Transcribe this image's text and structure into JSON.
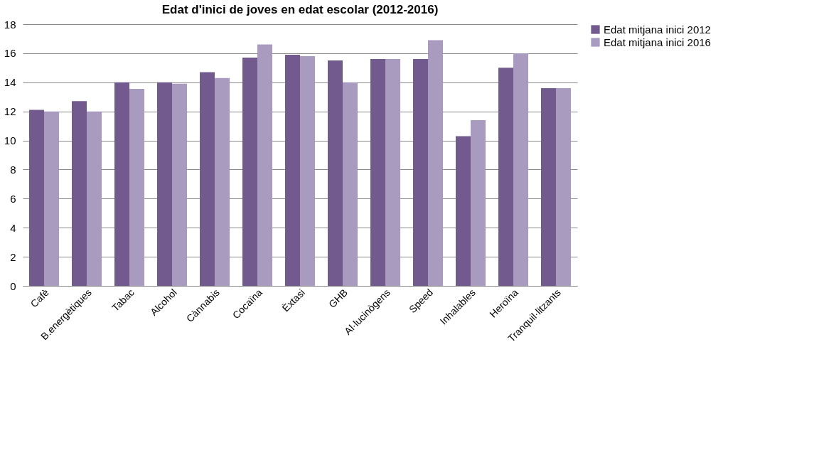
{
  "chart_data": {
    "type": "bar",
    "title": "Edat d'inici de joves en edat escolar (2012-2016)",
    "categories": [
      "Cafè",
      "B.energètiques",
      "Tabac",
      "Alcohol",
      "Cànnabis",
      "Cocaïna",
      "Èxtasi",
      "GHB",
      "Al·lucinògens",
      "Speed",
      "Inhalables",
      "Heroïna",
      "Tranquil·litzants"
    ],
    "series": [
      {
        "name": "Edat mitjana inici 2012",
        "color": "#725a8f",
        "values": [
          12.1,
          12.7,
          14.0,
          14.0,
          14.7,
          15.7,
          15.9,
          15.5,
          15.6,
          15.6,
          10.3,
          15.0,
          13.6
        ]
      },
      {
        "name": "Edat mitjana inici 2016",
        "color": "#a89bbf",
        "values": [
          12.0,
          12.0,
          13.55,
          13.9,
          14.3,
          16.6,
          15.8,
          14.0,
          15.6,
          16.9,
          11.4,
          16.0,
          13.6
        ]
      }
    ],
    "ylim": [
      0,
      18
    ],
    "yticks": [
      0,
      2,
      4,
      6,
      8,
      10,
      12,
      14,
      16,
      18
    ],
    "grid": "y",
    "legend": "right"
  }
}
